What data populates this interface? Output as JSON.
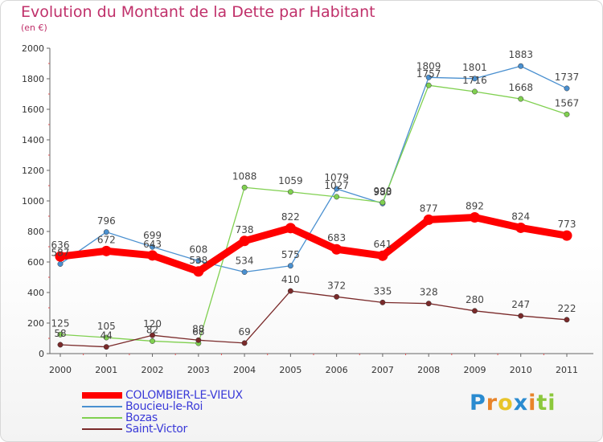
{
  "header": {
    "title": "Evolution du Montant de la Dette par Habitant",
    "subtitle": "(en €)"
  },
  "logo": {
    "letters": [
      {
        "ch": "P",
        "color": "#2a8bd0"
      },
      {
        "ch": "r",
        "color": "#e8842a"
      },
      {
        "ch": "o",
        "color": "#e8c42a"
      },
      {
        "ch": "x",
        "color": "#2a8bd0"
      },
      {
        "ch": "i",
        "color": "#e8842a"
      },
      {
        "ch": "t",
        "color": "#8cc83c"
      },
      {
        "ch": "i",
        "color": "#8cc83c"
      }
    ]
  },
  "chart_data": {
    "type": "line",
    "title": "Evolution du Montant de la Dette par Habitant",
    "subtitle": "(en €)",
    "xlabel": "",
    "ylabel": "",
    "x": [
      "2000",
      "2001",
      "2002",
      "2003",
      "2004",
      "2005",
      "2006",
      "2007",
      "2008",
      "2009",
      "2010",
      "2011"
    ],
    "ylim": [
      0,
      2000
    ],
    "yticks": [
      "0",
      "200",
      "400",
      "600",
      "800",
      "1000",
      "1200",
      "1400",
      "1600",
      "1800",
      "2000"
    ],
    "grid": false,
    "legend_position": "bottom-left",
    "series": [
      {
        "name": "COLOMBIER-LE-VIEUX",
        "color": "#ff0000",
        "values": [
          636,
          672,
          643,
          538,
          738,
          822,
          683,
          641,
          877,
          892,
          824,
          773
        ],
        "labels": [
          "636",
          "672",
          "643",
          "538",
          "738",
          "822",
          "683",
          "641",
          "877",
          "892",
          "824",
          "773"
        ]
      },
      {
        "name": "Boucieu-le-Roi",
        "color": "#4a90d0",
        "values": [
          587,
          796,
          699,
          608,
          534,
          575,
          1079,
          983,
          1809,
          1801,
          1883,
          1737
        ],
        "labels": [
          "587",
          "796",
          "699",
          "608",
          "534",
          "575",
          "1079",
          "983",
          "1809",
          "1801",
          "1883",
          "1737"
        ]
      },
      {
        "name": "Bozas",
        "color": "#80d050",
        "values": [
          125,
          105,
          82,
          68,
          1088,
          1059,
          1027,
          990,
          1757,
          1716,
          1668,
          1567
        ],
        "labels": [
          "125",
          "105",
          "82",
          "68",
          "1088",
          "1059",
          "1027",
          "990",
          "1757",
          "1716",
          "1668",
          "1567"
        ]
      },
      {
        "name": "Saint-Victor",
        "color": "#7a2a2a",
        "values": [
          58,
          44,
          120,
          88,
          69,
          410,
          372,
          335,
          328,
          280,
          247,
          222
        ],
        "labels": [
          "58",
          "44",
          "120",
          "88",
          "69",
          "410",
          "372",
          "335",
          "328",
          "280",
          "247",
          "222"
        ]
      }
    ]
  }
}
